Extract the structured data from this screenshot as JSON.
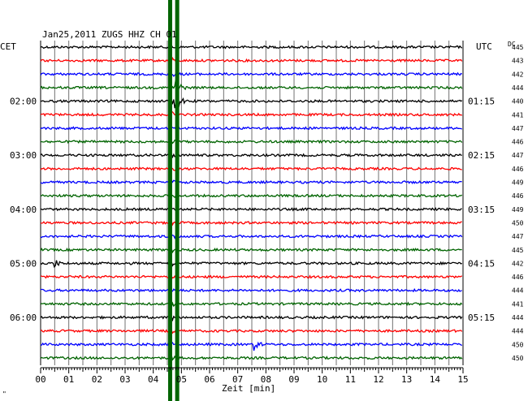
{
  "chart_data": {
    "type": "line",
    "title": "Jan25,2011   ZUGS HHZ CH 01",
    "left_label": "CET",
    "right_label": "UTC",
    "dc_label": "DC",
    "xlabel": "Zeit [min]",
    "x_ticks": [
      "00",
      "01",
      "02",
      "03",
      "04",
      "05",
      "06",
      "07",
      "08",
      "09",
      "10",
      "11",
      "12",
      "13",
      "14",
      "15"
    ],
    "xlim": [
      0,
      15
    ],
    "grid": true,
    "trace_colors": [
      "#000000",
      "#ff0000",
      "#0000ff",
      "#006400"
    ],
    "cet_labels": [
      {
        "row": 4,
        "text": "02:00"
      },
      {
        "row": 8,
        "text": "03:00"
      },
      {
        "row": 12,
        "text": "04:00"
      },
      {
        "row": 16,
        "text": "05:00"
      },
      {
        "row": 20,
        "text": "06:00"
      }
    ],
    "utc_labels": [
      {
        "row": 4,
        "text": "01:15"
      },
      {
        "row": 8,
        "text": "02:15"
      },
      {
        "row": 12,
        "text": "03:15"
      },
      {
        "row": 16,
        "text": "04:15"
      },
      {
        "row": 20,
        "text": "05:15"
      }
    ],
    "dc_values": [
      "445",
      "443",
      "442",
      "444",
      "440",
      "441",
      "447",
      "446",
      "447",
      "446",
      "449",
      "446",
      "449",
      "450",
      "447",
      "445",
      "442",
      "446",
      "444",
      "441",
      "444",
      "444",
      "450",
      "450"
    ],
    "events": [
      {
        "time_min": 4.65,
        "rows": [
          0,
          23
        ],
        "amplitude": 4,
        "note": "broad green band"
      },
      {
        "time_min": 4.8,
        "rows": [
          3,
          4
        ],
        "amplitude": 12
      },
      {
        "time_min": 0.5,
        "rows": [
          16,
          16
        ],
        "amplitude": 6
      },
      {
        "time_min": 7.6,
        "rows": [
          22,
          22
        ],
        "amplitude": 8
      }
    ],
    "marker_lines": [
      {
        "time_min": 4.6,
        "color": "#006400"
      },
      {
        "time_min": 4.85,
        "color": "#006400"
      }
    ],
    "corner_mark": "\""
  }
}
